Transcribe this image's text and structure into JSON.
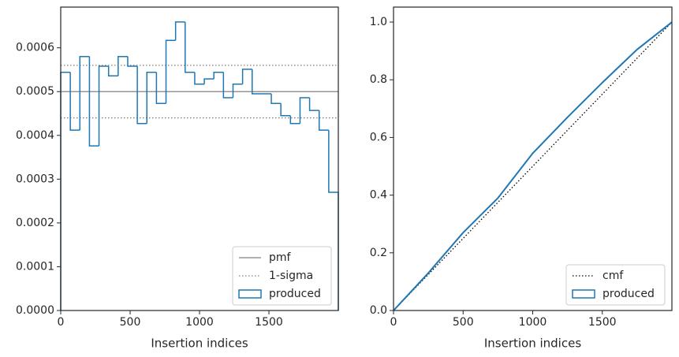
{
  "chart_data": [
    {
      "type": "histogram",
      "xlabel": "Insertion indices",
      "bins": [
        0,
        68.97,
        137.93,
        206.9,
        275.86,
        344.83,
        413.79,
        482.76,
        551.72,
        620.69,
        689.66,
        758.62,
        827.59,
        896.55,
        965.52,
        1034.48,
        1103.45,
        1172.41,
        1241.38,
        1310.34,
        1379.31,
        1448.28,
        1517.24,
        1586.21,
        1655.17,
        1724.14,
        1793.1,
        1862.07,
        1931.03,
        2000
      ],
      "series": [
        {
          "name": "produced",
          "color": "#1f77b4",
          "values": [
            0.000544,
            0.000412,
            0.00058,
            0.000376,
            0.000558,
            0.000536,
            0.00058,
            0.000558,
            0.000427,
            0.000544,
            0.000473,
            0.000617,
            0.000659,
            0.000544,
            0.000517,
            0.000529,
            0.000544,
            0.000486,
            0.000517,
            0.000551,
            0.000495,
            0.000495,
            0.000473,
            0.000445,
            0.000427,
            0.000486,
            0.000457,
            0.000412,
            0.00027
          ]
        }
      ],
      "hlines": [
        {
          "name": "pmf",
          "color": "#808080",
          "style": "solid",
          "values": [
            0.0005
          ]
        },
        {
          "name": "1-sigma",
          "color": "#808080",
          "style": "dotted",
          "values": [
            0.00056,
            0.00044
          ]
        }
      ],
      "xlim": [
        0,
        2000
      ],
      "xticks": [
        0,
        500,
        1000,
        1500
      ],
      "ylim": [
        0,
        0.000693
      ],
      "yticks": [
        {
          "value": 0,
          "label": "0.0000"
        },
        {
          "value": 0.0001,
          "label": "0.0001"
        },
        {
          "value": 0.0002,
          "label": "0.0002"
        },
        {
          "value": 0.0003,
          "label": "0.0003"
        },
        {
          "value": 0.0004,
          "label": "0.0004"
        },
        {
          "value": 0.0005,
          "label": "0.0005"
        },
        {
          "value": 0.0006,
          "label": "0.0006"
        }
      ],
      "legend": "lower right",
      "legend_order": [
        "pmf",
        "1-sigma",
        "produced"
      ]
    },
    {
      "type": "line",
      "xlabel": "Insertion indices",
      "series": [
        {
          "name": "cmf",
          "color": "#000000",
          "style": "dotted",
          "x": [
            0,
            2000
          ],
          "values": [
            0,
            1
          ]
        },
        {
          "name": "produced",
          "color": "#1f77b4",
          "style": "solid",
          "x": [
            0,
            250,
            500,
            750,
            1000,
            1250,
            1500,
            1750,
            2000
          ],
          "values": [
            0,
            0.13,
            0.27,
            0.39,
            0.545,
            0.67,
            0.79,
            0.905,
            1
          ]
        }
      ],
      "xlim": [
        0,
        2000
      ],
      "xticks": [
        0,
        500,
        1000,
        1500
      ],
      "ylim": [
        0,
        1.052
      ],
      "yticks": [
        {
          "value": 0,
          "label": "0.0"
        },
        {
          "value": 0.2,
          "label": "0.2"
        },
        {
          "value": 0.4,
          "label": "0.4"
        },
        {
          "value": 0.6,
          "label": "0.6"
        },
        {
          "value": 0.8,
          "label": "0.8"
        },
        {
          "value": 1,
          "label": "1.0"
        }
      ],
      "legend": "lower right"
    }
  ]
}
